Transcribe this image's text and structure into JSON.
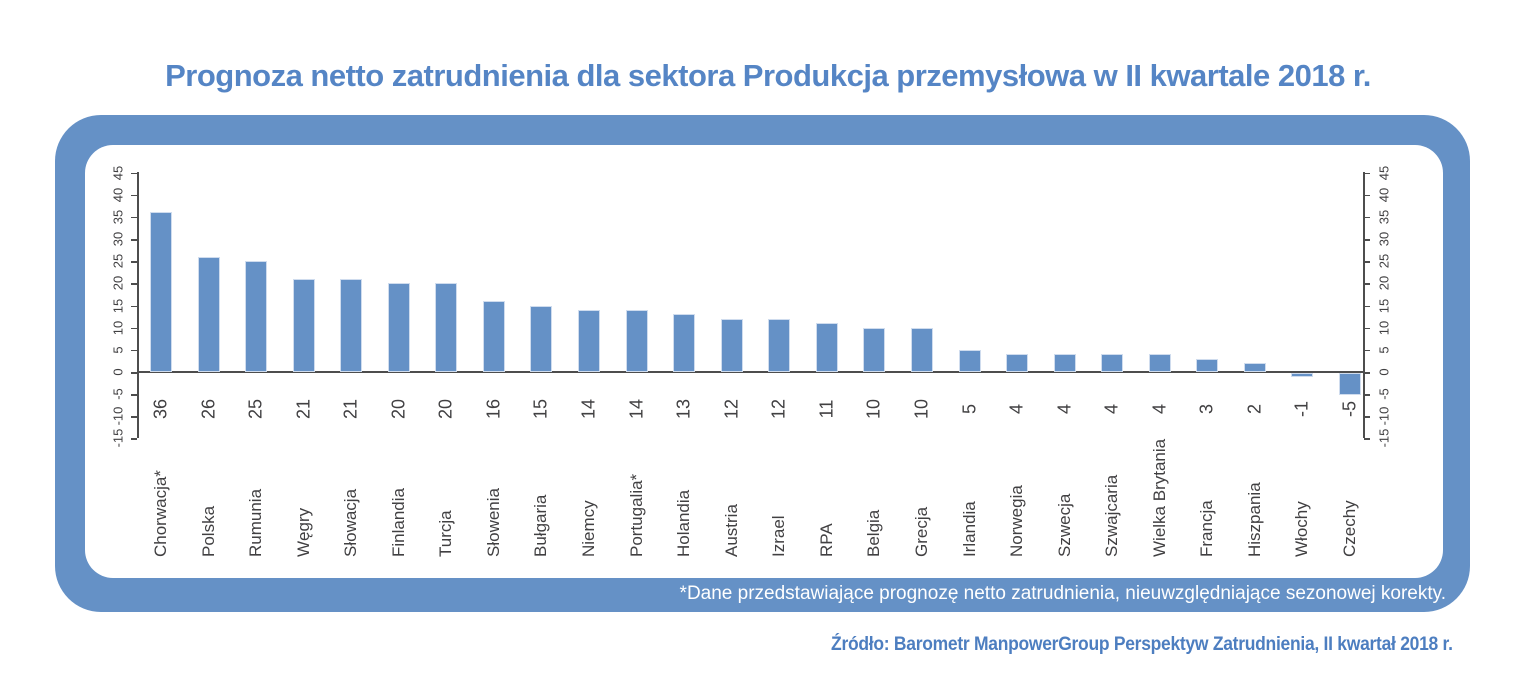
{
  "title": "Prognoza netto zatrudnienia dla sektora Produkcja przemysłowa w II kwartale 2018 r.",
  "footnote": "*Dane przedstawiające prognozę netto zatrudnienia, nieuwzględniające sezonowej korekty.",
  "source": "Źródło: Barometr ManpowerGroup Perspektyw Zatrudnienia, II kwartał 2018 r.",
  "colors": {
    "accent": "#6591c6",
    "bar": "#6591c6",
    "bar_border": "#cfdcee",
    "title_text": "#5585c5",
    "axis": "#4d4d4d",
    "label_text": "#414042",
    "footnote_text": "#ffffff",
    "source_text": "#4d7ec0",
    "panel_background": "#ffffff"
  },
  "chart_data": {
    "type": "bar",
    "title": "Prognoza netto zatrudnienia dla sektora Produkcja przemysłowa w II kwartale 2018 r.",
    "categories": [
      "Chorwacja*",
      "Polska",
      "Rumunia",
      "Węgry",
      "Słowacja",
      "Finlandia",
      "Turcja",
      "Słowenia",
      "Bułgaria",
      "Niemcy",
      "Portugalia*",
      "Holandia",
      "Austria",
      "Izrael",
      "RPA",
      "Belgia",
      "Grecja",
      "Irlandia",
      "Norwegia",
      "Szwecja",
      "Szwajcaria",
      "Wielka Brytania",
      "Francja",
      "Hiszpania",
      "Włochy",
      "Czechy"
    ],
    "values": [
      36,
      26,
      25,
      21,
      21,
      20,
      20,
      16,
      15,
      14,
      14,
      13,
      12,
      12,
      11,
      10,
      10,
      5,
      4,
      4,
      4,
      4,
      3,
      2,
      -1,
      -5
    ],
    "xlabel": "",
    "ylabel": "",
    "ylim": [
      -15,
      45
    ],
    "yticks": [
      45,
      40,
      35,
      30,
      25,
      20,
      15,
      10,
      5,
      0,
      -5,
      -10,
      -15
    ],
    "grid": false,
    "legend": null,
    "axes": "mirrored left and right y-axes, rotated tick labels, value labels below zero line, category labels rotated 90deg"
  }
}
